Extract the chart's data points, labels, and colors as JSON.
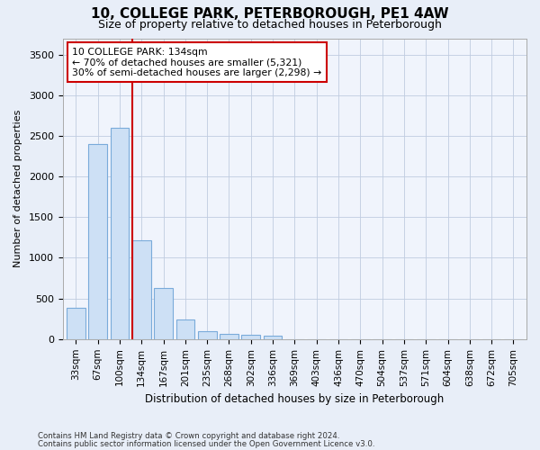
{
  "title": "10, COLLEGE PARK, PETERBOROUGH, PE1 4AW",
  "subtitle": "Size of property relative to detached houses in Peterborough",
  "xlabel": "Distribution of detached houses by size in Peterborough",
  "ylabel": "Number of detached properties",
  "footnote1": "Contains HM Land Registry data © Crown copyright and database right 2024.",
  "footnote2": "Contains public sector information licensed under the Open Government Licence v3.0.",
  "categories": [
    "33sqm",
    "67sqm",
    "100sqm",
    "134sqm",
    "167sqm",
    "201sqm",
    "235sqm",
    "268sqm",
    "302sqm",
    "336sqm",
    "369sqm",
    "403sqm",
    "436sqm",
    "470sqm",
    "504sqm",
    "537sqm",
    "571sqm",
    "604sqm",
    "638sqm",
    "672sqm",
    "705sqm"
  ],
  "values": [
    390,
    2400,
    2600,
    1220,
    625,
    240,
    100,
    60,
    55,
    40,
    0,
    0,
    0,
    0,
    0,
    0,
    0,
    0,
    0,
    0,
    0
  ],
  "bar_color": "#cde0f5",
  "bar_edge_color": "#7aabda",
  "vline_color": "#cc0000",
  "annotation_text": "10 COLLEGE PARK: 134sqm\n← 70% of detached houses are smaller (5,321)\n30% of semi-detached houses are larger (2,298) →",
  "annotation_box_color": "#ffffff",
  "annotation_box_edge": "#cc0000",
  "ylim": [
    0,
    3700
  ],
  "yticks": [
    0,
    500,
    1000,
    1500,
    2000,
    2500,
    3000,
    3500
  ],
  "bg_color": "#e8eef8",
  "plot_bg_color": "#f0f4fc",
  "grid_color": "#c0cce0",
  "title_fontsize": 11,
  "subtitle_fontsize": 9,
  "axis_fontsize": 8,
  "tick_fontsize": 8
}
